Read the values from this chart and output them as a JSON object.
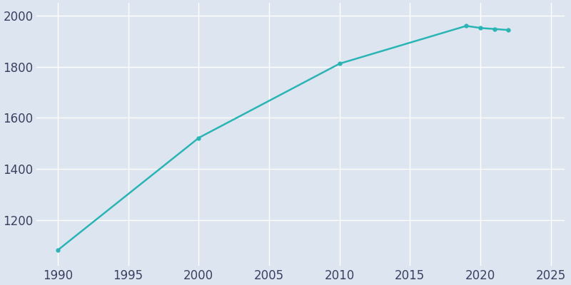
{
  "years": [
    1990,
    2000,
    2010,
    2019,
    2020,
    2021,
    2022
  ],
  "population": [
    1081,
    1521,
    1812,
    1960,
    1952,
    1948,
    1944
  ],
  "line_color": "#2ab5b5",
  "marker_style": "o",
  "marker_size": 3.5,
  "line_width": 1.8,
  "bg_color": "#dde5f0",
  "fig_bg_color": "#dde5f0",
  "xlim": [
    1988.5,
    2026
  ],
  "ylim": [
    1020,
    2050
  ],
  "yticks": [
    1200,
    1400,
    1600,
    1800,
    2000
  ],
  "xticks": [
    1990,
    1995,
    2000,
    2005,
    2010,
    2015,
    2020,
    2025
  ],
  "grid_color": "#FFFFFF",
  "tick_color": "#3a4060",
  "tick_fontsize": 12
}
